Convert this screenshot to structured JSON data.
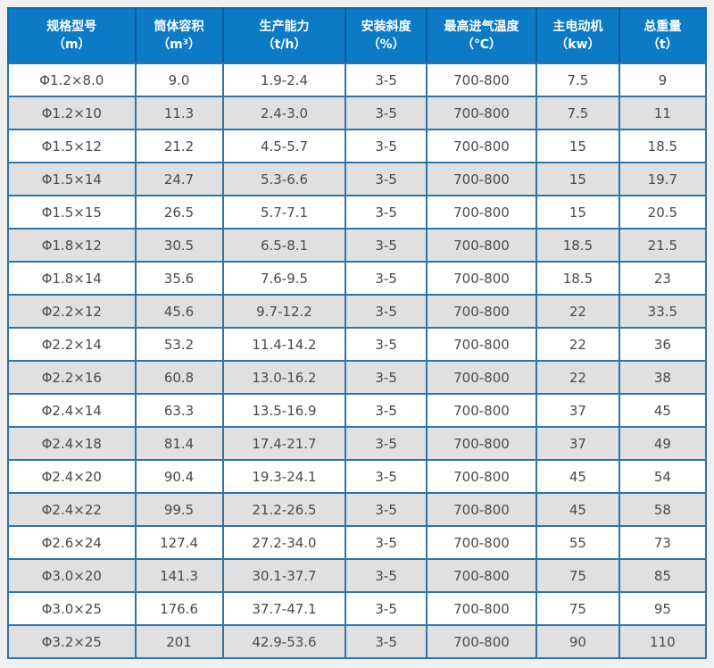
{
  "colors": {
    "header_bg": "#0d7ac6",
    "header_text": "#ffffff",
    "header_divider": "#0a5c9c",
    "inner_border": "#2e74a8",
    "outer_border": "#0f6fb4",
    "row_white": "#ffffff",
    "row_gray": "#e0e0e0",
    "body_text": "#4a4a4a",
    "page_bg": "#f0f0f0"
  },
  "chart_data": {
    "type": "table",
    "title": "",
    "columns": [
      {
        "label": "规格型号",
        "unit": "（m）"
      },
      {
        "label": "筒体容积",
        "unit": "（m³）"
      },
      {
        "label": "生产能力",
        "unit": "（t/h）"
      },
      {
        "label": "安装斜度",
        "unit": "（%）"
      },
      {
        "label": "最高进气温度",
        "unit": "（℃）"
      },
      {
        "label": "主电动机",
        "unit": "（kw）"
      },
      {
        "label": "总重量",
        "unit": "（t）"
      }
    ],
    "rows": [
      [
        "Φ1.2×8.0",
        "9.0",
        "1.9-2.4",
        "3-5",
        "700-800",
        "7.5",
        "9"
      ],
      [
        "Φ1.2×10",
        "11.3",
        "2.4-3.0",
        "3-5",
        "700-800",
        "7.5",
        "11"
      ],
      [
        "Φ1.5×12",
        "21.2",
        "4.5-5.7",
        "3-5",
        "700-800",
        "15",
        "18.5"
      ],
      [
        "Φ1.5×14",
        "24.7",
        "5.3-6.6",
        "3-5",
        "700-800",
        "15",
        "19.7"
      ],
      [
        "Φ1.5×15",
        "26.5",
        "5.7-7.1",
        "3-5",
        "700-800",
        "15",
        "20.5"
      ],
      [
        "Φ1.8×12",
        "30.5",
        "6.5-8.1",
        "3-5",
        "700-800",
        "18.5",
        "21.5"
      ],
      [
        "Φ1.8×14",
        "35.6",
        "7.6-9.5",
        "3-5",
        "700-800",
        "18.5",
        "23"
      ],
      [
        "Φ2.2×12",
        "45.6",
        "9.7-12.2",
        "3-5",
        "700-800",
        "22",
        "33.5"
      ],
      [
        "Φ2.2×14",
        "53.2",
        "11.4-14.2",
        "3-5",
        "700-800",
        "22",
        "36"
      ],
      [
        "Φ2.2×16",
        "60.8",
        "13.0-16.2",
        "3-5",
        "700-800",
        "22",
        "38"
      ],
      [
        "Φ2.4×14",
        "63.3",
        "13.5-16.9",
        "3-5",
        "700-800",
        "37",
        "45"
      ],
      [
        "Φ2.4×18",
        "81.4",
        "17.4-21.7",
        "3-5",
        "700-800",
        "37",
        "49"
      ],
      [
        "Φ2.4×20",
        "90.4",
        "19.3-24.1",
        "3-5",
        "700-800",
        "45",
        "54"
      ],
      [
        "Φ2.4×22",
        "99.5",
        "21.2-26.5",
        "3-5",
        "700-800",
        "45",
        "58"
      ],
      [
        "Φ2.6×24",
        "127.4",
        "27.2-34.0",
        "3-5",
        "700-800",
        "55",
        "73"
      ],
      [
        "Φ3.0×20",
        "141.3",
        "30.1-37.7",
        "3-5",
        "700-800",
        "75",
        "85"
      ],
      [
        "Φ3.0×25",
        "176.6",
        "37.7-47.1",
        "3-5",
        "700-800",
        "75",
        "95"
      ],
      [
        "Φ3.2×25",
        "201",
        "42.9-53.6",
        "3-5",
        "700-800",
        "90",
        "110"
      ]
    ]
  }
}
